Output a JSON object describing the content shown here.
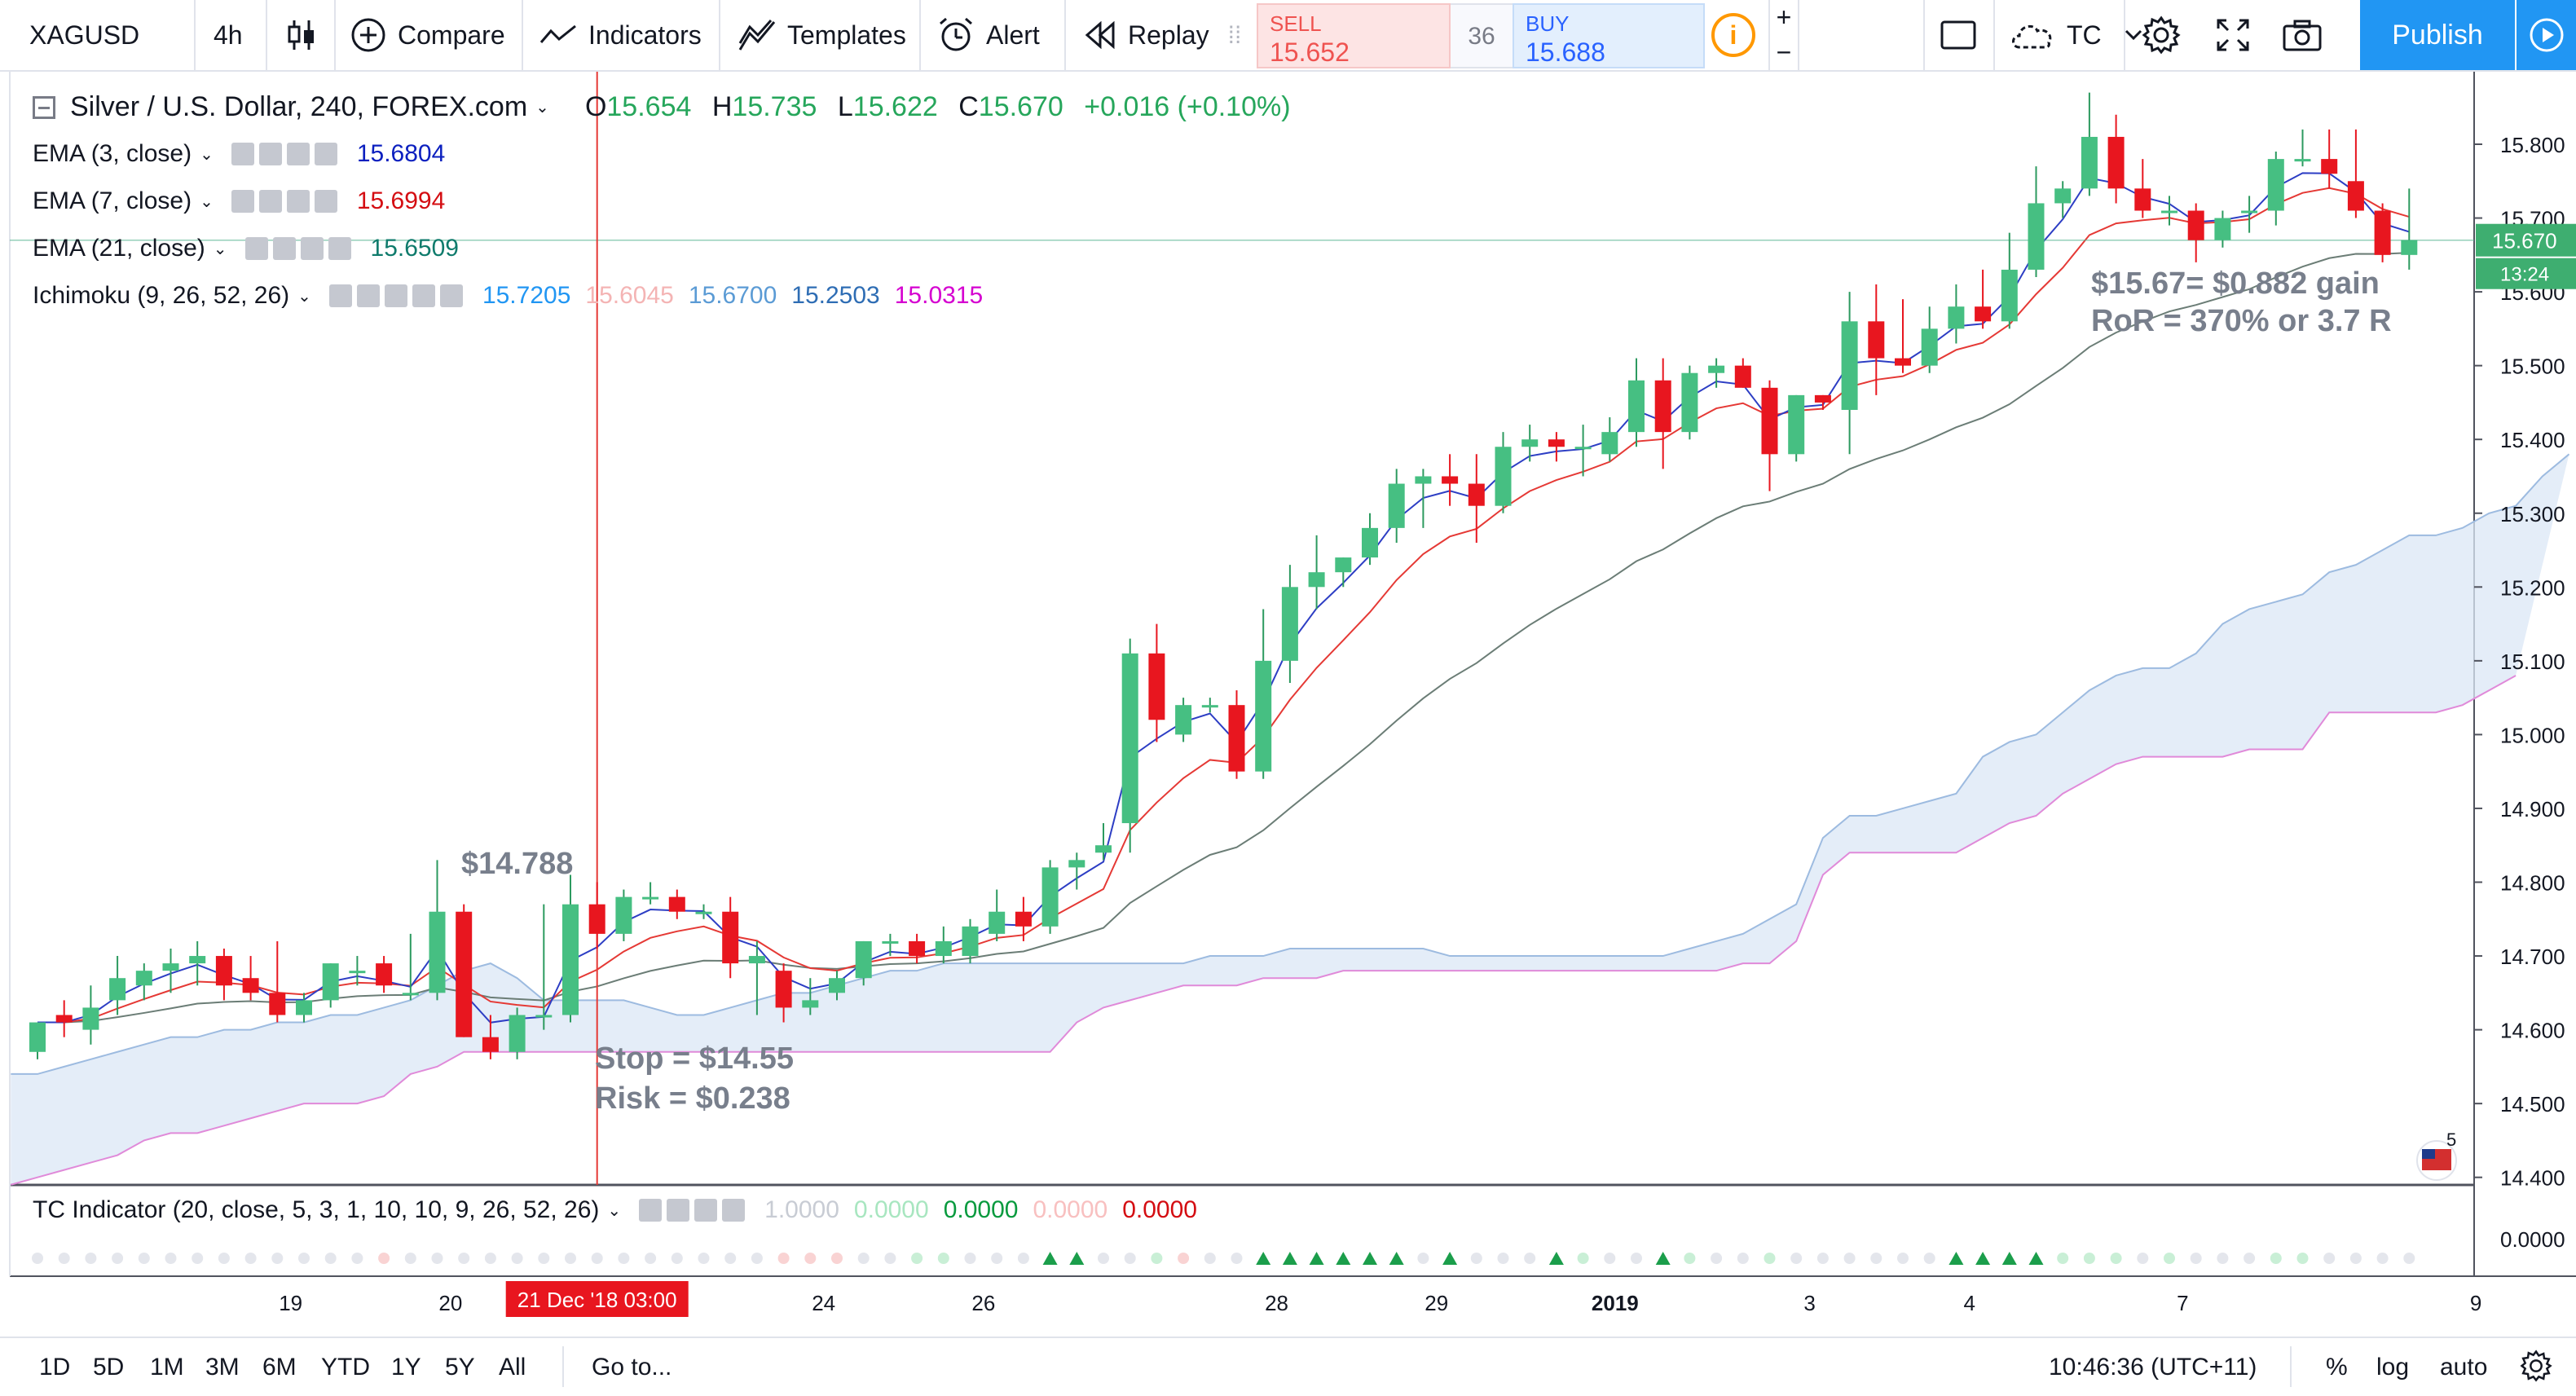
{
  "toolbar": {
    "symbol": "XAGUSD",
    "timeframe": "4h",
    "chart_style_icon": "candles-icon",
    "compare_label": "Compare",
    "indicators_label": "Indicators",
    "templates_label": "Templates",
    "alert_label": "Alert",
    "replay_label": "Replay",
    "sell_label": "SELL",
    "sell_price": "15.652",
    "spread": "36",
    "buy_label": "BUY",
    "buy_price": "15.688",
    "info_symbol": "i",
    "plus": "+",
    "minus": "−",
    "layout_label": "TC",
    "publish_label": "Publish",
    "accent": "#2196f3"
  },
  "legend": {
    "main_title": "Silver / U.S. Dollar, 240, FOREX.com",
    "open_label": "O",
    "open": "15.654",
    "high_label": "H",
    "high": "15.735",
    "low_label": "L",
    "low": "15.622",
    "close_label": "C",
    "close": "15.670",
    "change": "+0.016 (+0.10%)",
    "ema3_label": "EMA (3, close)",
    "ema3_value": "15.6804",
    "ema3_color": "#0b1fbf",
    "ema7_label": "EMA (7, close)",
    "ema7_value": "15.6994",
    "ema7_color": "#d40d12",
    "ema21_label": "EMA (21, close)",
    "ema21_value": "15.6509",
    "ema21_color": "#0f7b6c",
    "ichimoku_label": "Ichimoku (9, 26, 52, 26)",
    "ichimoku_values": [
      "15.7205",
      "15.6045",
      "15.6700",
      "15.2503",
      "15.0315"
    ],
    "ichimoku_colors": [
      "#2196f3",
      "#f4b4b4",
      "#5b9bd5",
      "#2e6db4",
      "#d500d0"
    ]
  },
  "annotations": {
    "entry_price": "$14.788",
    "stop": "Stop = $14.55",
    "risk": "Risk = $0.238",
    "gain": "$15.67= $0.882 gain",
    "ror": "RoR = 370% or 3.7 R"
  },
  "price_axis": {
    "labels": [
      "15.800",
      "15.700",
      "15.600",
      "15.500",
      "15.400",
      "15.300",
      "15.200",
      "15.100",
      "15.000",
      "14.900",
      "14.800",
      "14.700",
      "14.600",
      "14.500",
      "14.400"
    ],
    "last_price": "15.670",
    "countdown": "13:24"
  },
  "tc_indicator": {
    "label": "TC Indicator (20, close, 5, 3, 1, 10, 10, 9, 26, 52, 26)",
    "values": [
      "1.0000",
      "0.0000",
      "0.0000",
      "0.0000",
      "0.0000"
    ],
    "value_colors": [
      "#c8ccd4",
      "#a8e6c0",
      "#089a3e",
      "#f8c0c0",
      "#d40d12"
    ],
    "axis_label": "0.0000"
  },
  "time_axis": {
    "labels": [
      "19",
      "20",
      "24",
      "26",
      "28",
      "29",
      "2019",
      "3",
      "4",
      "7",
      "9"
    ],
    "crosshair_time": "21 Dec '18    03:00"
  },
  "flag_badge": "5",
  "bottom": {
    "ranges": [
      "1D",
      "5D",
      "1M",
      "3M",
      "6M",
      "YTD",
      "1Y",
      "5Y",
      "All"
    ],
    "goto": "Go to...",
    "clock": "10:46:36 (UTC+11)",
    "percent": "%",
    "log": "log",
    "auto": "auto"
  },
  "chart_data": {
    "type": "candlestick",
    "symbol": "XAGUSD",
    "interval": "4h",
    "ylim": [
      14.39,
      15.87
    ],
    "candles": [
      {
        "o": 14.57,
        "h": 14.61,
        "l": 14.56,
        "c": 14.61
      },
      {
        "o": 14.62,
        "h": 14.64,
        "l": 14.59,
        "c": 14.61
      },
      {
        "o": 14.6,
        "h": 14.66,
        "l": 14.58,
        "c": 14.63
      },
      {
        "o": 14.64,
        "h": 14.7,
        "l": 14.62,
        "c": 14.67
      },
      {
        "o": 14.66,
        "h": 14.69,
        "l": 14.64,
        "c": 14.68
      },
      {
        "o": 14.68,
        "h": 14.71,
        "l": 14.65,
        "c": 14.69
      },
      {
        "o": 14.69,
        "h": 14.72,
        "l": 14.66,
        "c": 14.7
      },
      {
        "o": 14.7,
        "h": 14.71,
        "l": 14.64,
        "c": 14.66
      },
      {
        "o": 14.67,
        "h": 14.7,
        "l": 14.64,
        "c": 14.65
      },
      {
        "o": 14.65,
        "h": 14.72,
        "l": 14.61,
        "c": 14.62
      },
      {
        "o": 14.62,
        "h": 14.65,
        "l": 14.61,
        "c": 14.64
      },
      {
        "o": 14.64,
        "h": 14.69,
        "l": 14.63,
        "c": 14.69
      },
      {
        "o": 14.68,
        "h": 14.7,
        "l": 14.66,
        "c": 14.68
      },
      {
        "o": 14.69,
        "h": 14.7,
        "l": 14.65,
        "c": 14.66
      },
      {
        "o": 14.65,
        "h": 14.73,
        "l": 14.64,
        "c": 14.65
      },
      {
        "o": 14.65,
        "h": 14.83,
        "l": 14.64,
        "c": 14.76
      },
      {
        "o": 14.76,
        "h": 14.77,
        "l": 14.59,
        "c": 14.59
      },
      {
        "o": 14.59,
        "h": 14.62,
        "l": 14.56,
        "c": 14.57
      },
      {
        "o": 14.57,
        "h": 14.63,
        "l": 14.56,
        "c": 14.62
      },
      {
        "o": 14.62,
        "h": 14.77,
        "l": 14.6,
        "c": 14.62
      },
      {
        "o": 14.62,
        "h": 14.81,
        "l": 14.61,
        "c": 14.77
      },
      {
        "o": 14.77,
        "h": 14.8,
        "l": 14.71,
        "c": 14.73
      },
      {
        "o": 14.73,
        "h": 14.79,
        "l": 14.72,
        "c": 14.78
      },
      {
        "o": 14.78,
        "h": 14.8,
        "l": 14.77,
        "c": 14.78
      },
      {
        "o": 14.78,
        "h": 14.79,
        "l": 14.75,
        "c": 14.76
      },
      {
        "o": 14.76,
        "h": 14.77,
        "l": 14.75,
        "c": 14.76
      },
      {
        "o": 14.76,
        "h": 14.78,
        "l": 14.67,
        "c": 14.69
      },
      {
        "o": 14.69,
        "h": 14.72,
        "l": 14.62,
        "c": 14.7
      },
      {
        "o": 14.68,
        "h": 14.69,
        "l": 14.61,
        "c": 14.63
      },
      {
        "o": 14.63,
        "h": 14.67,
        "l": 14.62,
        "c": 14.64
      },
      {
        "o": 14.65,
        "h": 14.68,
        "l": 14.64,
        "c": 14.67
      },
      {
        "o": 14.67,
        "h": 14.72,
        "l": 14.66,
        "c": 14.72
      },
      {
        "o": 14.72,
        "h": 14.73,
        "l": 14.7,
        "c": 14.72
      },
      {
        "o": 14.72,
        "h": 14.73,
        "l": 14.69,
        "c": 14.7
      },
      {
        "o": 14.7,
        "h": 14.74,
        "l": 14.69,
        "c": 14.72
      },
      {
        "o": 14.7,
        "h": 14.75,
        "l": 14.69,
        "c": 14.74
      },
      {
        "o": 14.73,
        "h": 14.79,
        "l": 14.72,
        "c": 14.76
      },
      {
        "o": 14.76,
        "h": 14.78,
        "l": 14.72,
        "c": 14.74
      },
      {
        "o": 14.74,
        "h": 14.83,
        "l": 14.73,
        "c": 14.82
      },
      {
        "o": 14.82,
        "h": 14.84,
        "l": 14.79,
        "c": 14.83
      },
      {
        "o": 14.84,
        "h": 14.88,
        "l": 14.83,
        "c": 14.85
      },
      {
        "o": 14.88,
        "h": 15.13,
        "l": 14.84,
        "c": 15.11
      },
      {
        "o": 15.11,
        "h": 15.15,
        "l": 14.99,
        "c": 15.02
      },
      {
        "o": 15.0,
        "h": 15.05,
        "l": 14.99,
        "c": 15.04
      },
      {
        "o": 15.04,
        "h": 15.05,
        "l": 15.03,
        "c": 15.04
      },
      {
        "o": 15.04,
        "h": 15.06,
        "l": 14.94,
        "c": 14.95
      },
      {
        "o": 14.95,
        "h": 15.17,
        "l": 14.94,
        "c": 15.1
      },
      {
        "o": 15.1,
        "h": 15.23,
        "l": 15.07,
        "c": 15.2
      },
      {
        "o": 15.2,
        "h": 15.27,
        "l": 15.17,
        "c": 15.22
      },
      {
        "o": 15.22,
        "h": 15.24,
        "l": 15.2,
        "c": 15.24
      },
      {
        "o": 15.24,
        "h": 15.3,
        "l": 15.23,
        "c": 15.28
      },
      {
        "o": 15.28,
        "h": 15.36,
        "l": 15.26,
        "c": 15.34
      },
      {
        "o": 15.34,
        "h": 15.36,
        "l": 15.28,
        "c": 15.35
      },
      {
        "o": 15.35,
        "h": 15.38,
        "l": 15.31,
        "c": 15.34
      },
      {
        "o": 15.34,
        "h": 15.38,
        "l": 15.26,
        "c": 15.31
      },
      {
        "o": 15.31,
        "h": 15.41,
        "l": 15.3,
        "c": 15.39
      },
      {
        "o": 15.39,
        "h": 15.42,
        "l": 15.37,
        "c": 15.4
      },
      {
        "o": 15.4,
        "h": 15.41,
        "l": 15.37,
        "c": 15.39
      },
      {
        "o": 15.39,
        "h": 15.42,
        "l": 15.35,
        "c": 15.39
      },
      {
        "o": 15.38,
        "h": 15.43,
        "l": 15.37,
        "c": 15.41
      },
      {
        "o": 15.41,
        "h": 15.51,
        "l": 15.39,
        "c": 15.48
      },
      {
        "o": 15.48,
        "h": 15.51,
        "l": 15.36,
        "c": 15.41
      },
      {
        "o": 15.41,
        "h": 15.5,
        "l": 15.4,
        "c": 15.49
      },
      {
        "o": 15.49,
        "h": 15.51,
        "l": 15.47,
        "c": 15.5
      },
      {
        "o": 15.5,
        "h": 15.51,
        "l": 15.47,
        "c": 15.47
      },
      {
        "o": 15.47,
        "h": 15.48,
        "l": 15.33,
        "c": 15.38
      },
      {
        "o": 15.38,
        "h": 15.46,
        "l": 15.37,
        "c": 15.46
      },
      {
        "o": 15.46,
        "h": 15.46,
        "l": 15.44,
        "c": 15.45
      },
      {
        "o": 15.44,
        "h": 15.6,
        "l": 15.38,
        "c": 15.56
      },
      {
        "o": 15.56,
        "h": 15.61,
        "l": 15.46,
        "c": 15.51
      },
      {
        "o": 15.51,
        "h": 15.59,
        "l": 15.49,
        "c": 15.5
      },
      {
        "o": 15.5,
        "h": 15.58,
        "l": 15.49,
        "c": 15.55
      },
      {
        "o": 15.55,
        "h": 15.61,
        "l": 15.53,
        "c": 15.58
      },
      {
        "o": 15.58,
        "h": 15.63,
        "l": 15.55,
        "c": 15.56
      },
      {
        "o": 15.56,
        "h": 15.68,
        "l": 15.55,
        "c": 15.63
      },
      {
        "o": 15.63,
        "h": 15.77,
        "l": 15.62,
        "c": 15.72
      },
      {
        "o": 15.72,
        "h": 15.75,
        "l": 15.7,
        "c": 15.74
      },
      {
        "o": 15.74,
        "h": 15.87,
        "l": 15.73,
        "c": 15.81
      },
      {
        "o": 15.81,
        "h": 15.84,
        "l": 15.72,
        "c": 15.74
      },
      {
        "o": 15.74,
        "h": 15.78,
        "l": 15.7,
        "c": 15.71
      },
      {
        "o": 15.71,
        "h": 15.73,
        "l": 15.69,
        "c": 15.71
      },
      {
        "o": 15.71,
        "h": 15.72,
        "l": 15.64,
        "c": 15.67
      },
      {
        "o": 15.67,
        "h": 15.71,
        "l": 15.66,
        "c": 15.7
      },
      {
        "o": 15.71,
        "h": 15.73,
        "l": 15.68,
        "c": 15.71
      },
      {
        "o": 15.71,
        "h": 15.79,
        "l": 15.69,
        "c": 15.78
      },
      {
        "o": 15.78,
        "h": 15.82,
        "l": 15.77,
        "c": 15.78
      },
      {
        "o": 15.78,
        "h": 15.82,
        "l": 15.74,
        "c": 15.76
      },
      {
        "o": 15.75,
        "h": 15.82,
        "l": 15.7,
        "c": 15.71
      },
      {
        "o": 15.71,
        "h": 15.72,
        "l": 15.64,
        "c": 15.65
      },
      {
        "o": 15.65,
        "h": 15.74,
        "l": 15.63,
        "c": 15.67
      }
    ],
    "cloud_span_a": [
      14.54,
      14.54,
      14.55,
      14.56,
      14.57,
      14.58,
      14.59,
      14.59,
      14.6,
      14.6,
      14.61,
      14.61,
      14.62,
      14.62,
      14.63,
      14.64,
      14.66,
      14.68,
      14.69,
      14.67,
      14.64,
      14.64,
      14.64,
      14.64,
      14.63,
      14.62,
      14.62,
      14.63,
      14.64,
      14.65,
      14.65,
      14.66,
      14.67,
      14.68,
      14.68,
      14.69,
      14.69,
      14.69,
      14.69,
      14.69,
      14.69,
      14.69,
      14.69,
      14.69,
      14.69,
      14.7,
      14.7,
      14.7,
      14.71,
      14.71,
      14.71,
      14.71,
      14.71,
      14.71,
      14.7,
      14.7,
      14.7,
      14.7,
      14.7,
      14.7,
      14.7,
      14.7,
      14.7,
      14.71,
      14.72,
      14.73,
      14.75,
      14.77,
      14.86,
      14.89,
      14.89,
      14.9,
      14.91,
      14.92,
      14.97,
      14.99,
      15.0,
      15.03,
      15.06,
      15.08,
      15.09,
      15.09,
      15.11,
      15.15,
      15.17,
      15.18,
      15.19,
      15.22,
      15.23,
      15.25,
      15.27,
      15.27,
      15.28,
      15.3,
      15.31,
      15.35,
      15.38
    ],
    "cloud_span_b": [
      14.39,
      14.4,
      14.41,
      14.42,
      14.43,
      14.45,
      14.46,
      14.46,
      14.47,
      14.48,
      14.49,
      14.5,
      14.5,
      14.5,
      14.51,
      14.54,
      14.55,
      14.57,
      14.57,
      14.57,
      14.57,
      14.57,
      14.57,
      14.57,
      14.57,
      14.57,
      14.57,
      14.57,
      14.57,
      14.57,
      14.57,
      14.57,
      14.57,
      14.57,
      14.57,
      14.57,
      14.57,
      14.57,
      14.57,
      14.57,
      14.61,
      14.63,
      14.64,
      14.65,
      14.66,
      14.66,
      14.66,
      14.67,
      14.67,
      14.67,
      14.68,
      14.68,
      14.68,
      14.68,
      14.68,
      14.68,
      14.68,
      14.68,
      14.68,
      14.68,
      14.68,
      14.68,
      14.68,
      14.68,
      14.68,
      14.69,
      14.69,
      14.72,
      14.81,
      14.84,
      14.84,
      14.84,
      14.84,
      14.84,
      14.86,
      14.88,
      14.89,
      14.92,
      14.94,
      14.96,
      14.97,
      14.97,
      14.97,
      14.97,
      14.98,
      14.98,
      14.98,
      15.03,
      15.03,
      15.03,
      15.03,
      15.03,
      15.04,
      15.06,
      15.08
    ],
    "entry_price": 14.788,
    "stop_price": 14.55,
    "target_price": 15.67,
    "last_price": 15.67,
    "crosshair_candle_index": 21,
    "time_ticks": [
      {
        "label": "19",
        "index": 9.5
      },
      {
        "label": "20",
        "index": 15.5
      },
      {
        "label": "24",
        "index": 29.5
      },
      {
        "label": "26",
        "index": 35.5
      },
      {
        "label": "28",
        "index": 46.5
      },
      {
        "label": "29",
        "index": 52.5
      },
      {
        "label": "2019",
        "index": 59.2
      },
      {
        "label": "3",
        "index": 66.5
      },
      {
        "label": "4",
        "index": 72.5
      },
      {
        "label": "7",
        "index": 80.5
      },
      {
        "label": "9",
        "index": 91.5
      }
    ],
    "tc_signals": {
      "up_arrow_indices": [
        38,
        39,
        46,
        47,
        48,
        49,
        50,
        51,
        53,
        57,
        61,
        72,
        73,
        74,
        75
      ],
      "dot_colors": {
        "default": "#e4e6ec",
        "green": "#c9efd6",
        "red": "#f9d3d3"
      },
      "light_green_indices": [
        33,
        34,
        42,
        58,
        62,
        65,
        76,
        77,
        78,
        80,
        84,
        85
      ],
      "light_red_indices": [
        13,
        28,
        29,
        30,
        43
      ]
    }
  }
}
